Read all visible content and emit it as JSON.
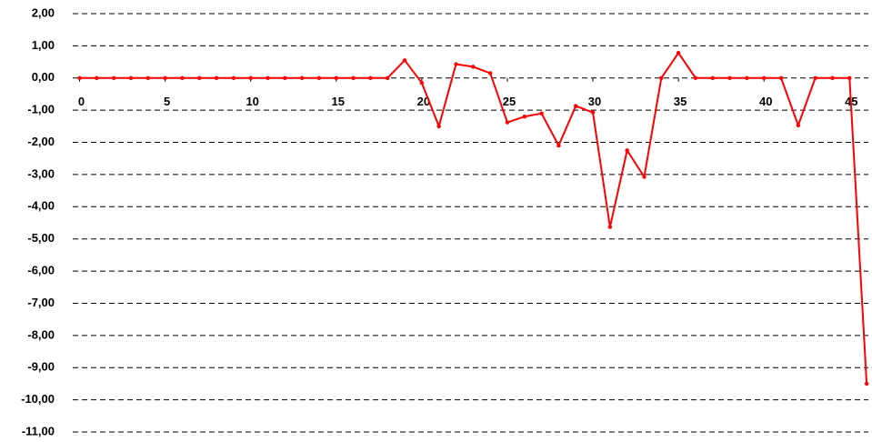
{
  "chart_data": {
    "type": "line",
    "x": [
      0,
      1,
      2,
      3,
      4,
      5,
      6,
      7,
      8,
      9,
      10,
      11,
      12,
      13,
      14,
      15,
      16,
      17,
      18,
      19,
      20,
      21,
      22,
      23,
      24,
      25,
      26,
      27,
      28,
      29,
      30,
      31,
      32,
      33,
      34,
      35,
      36,
      37,
      38,
      39,
      40,
      41,
      42,
      43,
      44,
      45,
      46
    ],
    "series": [
      {
        "color": "#ff0000",
        "values": [
          0,
          0,
          0,
          0,
          0,
          0,
          0,
          0,
          0,
          0,
          0,
          0,
          0,
          0,
          0,
          0,
          0,
          0,
          0,
          0.55,
          -0.15,
          -1.5,
          0.43,
          0.35,
          0.15,
          -1.38,
          -1.2,
          -1.1,
          -2.1,
          -0.87,
          -1.07,
          -4.63,
          -2.25,
          -3.07,
          0,
          0.78,
          0,
          0,
          0,
          0,
          0,
          0,
          -1.47,
          0,
          0,
          0,
          -9.5
        ]
      }
    ],
    "xlim": [
      -0.4,
      46.1
    ],
    "xticks": [
      0,
      5,
      10,
      15,
      20,
      25,
      30,
      35,
      40,
      45
    ],
    "ylim": [
      -11,
      2
    ],
    "yticks": [
      {
        "value": 2,
        "label": "2,00"
      },
      {
        "value": 1,
        "label": "1,00"
      },
      {
        "value": 0,
        "label": "0,00"
      },
      {
        "value": -1,
        "label": "-1,00"
      },
      {
        "value": -2,
        "label": "-2,00"
      },
      {
        "value": -3,
        "label": "-3,00"
      },
      {
        "value": -4,
        "label": "-4,00"
      },
      {
        "value": -5,
        "label": "-5,00"
      },
      {
        "value": -6,
        "label": "-6,00"
      },
      {
        "value": -7,
        "label": "-7,00"
      },
      {
        "value": -8,
        "label": "-8,00"
      },
      {
        "value": -9,
        "label": "-9,00"
      },
      {
        "value": -10,
        "label": "-10,00"
      },
      {
        "value": -11,
        "label": "-11,00"
      }
    ],
    "grid": true
  }
}
